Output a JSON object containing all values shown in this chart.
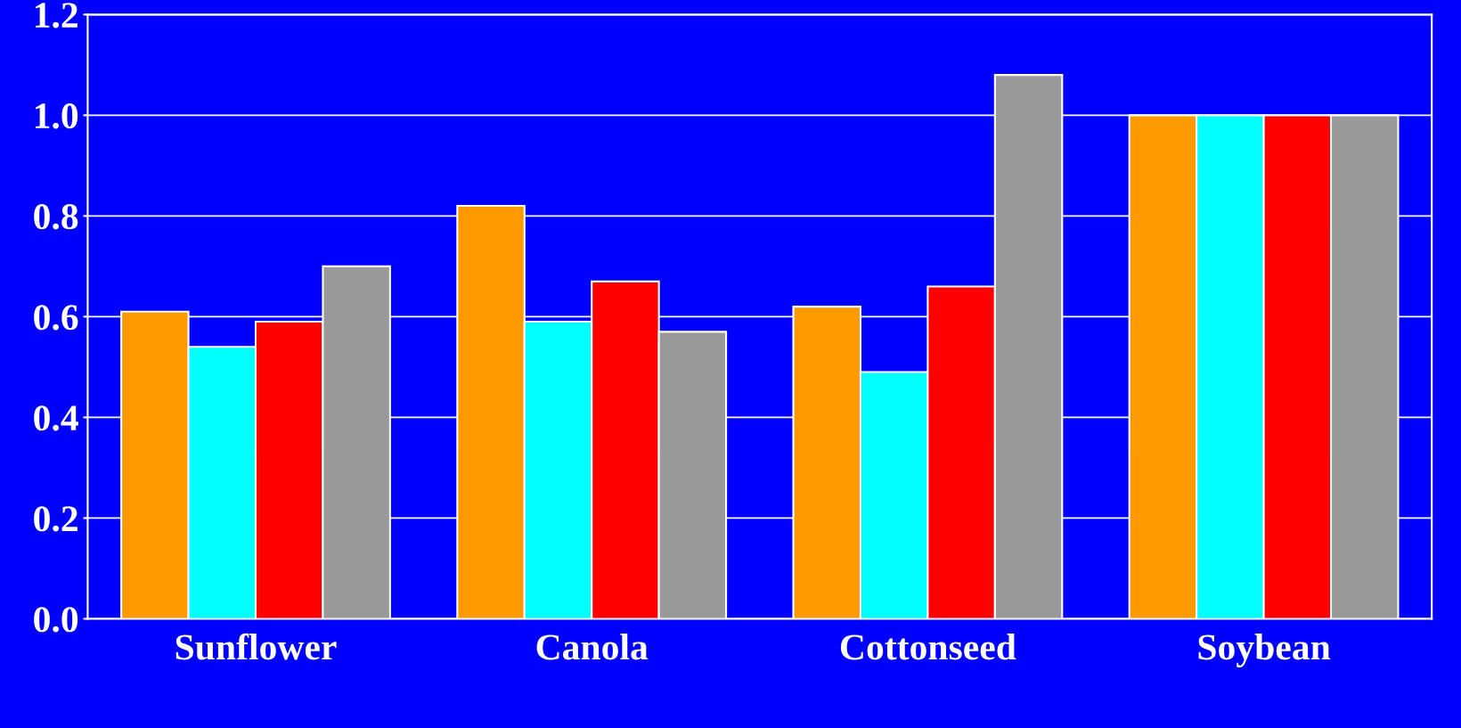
{
  "chart_data": {
    "type": "bar",
    "categories": [
      "Sunflower",
      "Canola",
      "Cottonseed",
      "Soybean"
    ],
    "series": [
      {
        "color": "#ff9900",
        "values": [
          0.61,
          0.82,
          0.62,
          1.0
        ]
      },
      {
        "color": "#00ffff",
        "values": [
          0.54,
          0.59,
          0.49,
          1.0
        ]
      },
      {
        "color": "#ff0000",
        "values": [
          0.59,
          0.67,
          0.66,
          1.0
        ]
      },
      {
        "color": "#999999",
        "values": [
          0.7,
          0.57,
          1.08,
          1.0
        ]
      }
    ],
    "ylim": [
      0,
      1.2
    ],
    "yticks": [
      {
        "value": 0,
        "label": "0.0"
      },
      {
        "value": 0.2,
        "label": "0.2"
      },
      {
        "value": 0.4,
        "label": "0.4"
      },
      {
        "value": 0.6,
        "label": "0.6"
      },
      {
        "value": 0.8,
        "label": "0.8"
      },
      {
        "value": 1.0,
        "label": "1.0"
      },
      {
        "value": 1.2,
        "label": "1.2"
      }
    ],
    "grid": "y"
  }
}
